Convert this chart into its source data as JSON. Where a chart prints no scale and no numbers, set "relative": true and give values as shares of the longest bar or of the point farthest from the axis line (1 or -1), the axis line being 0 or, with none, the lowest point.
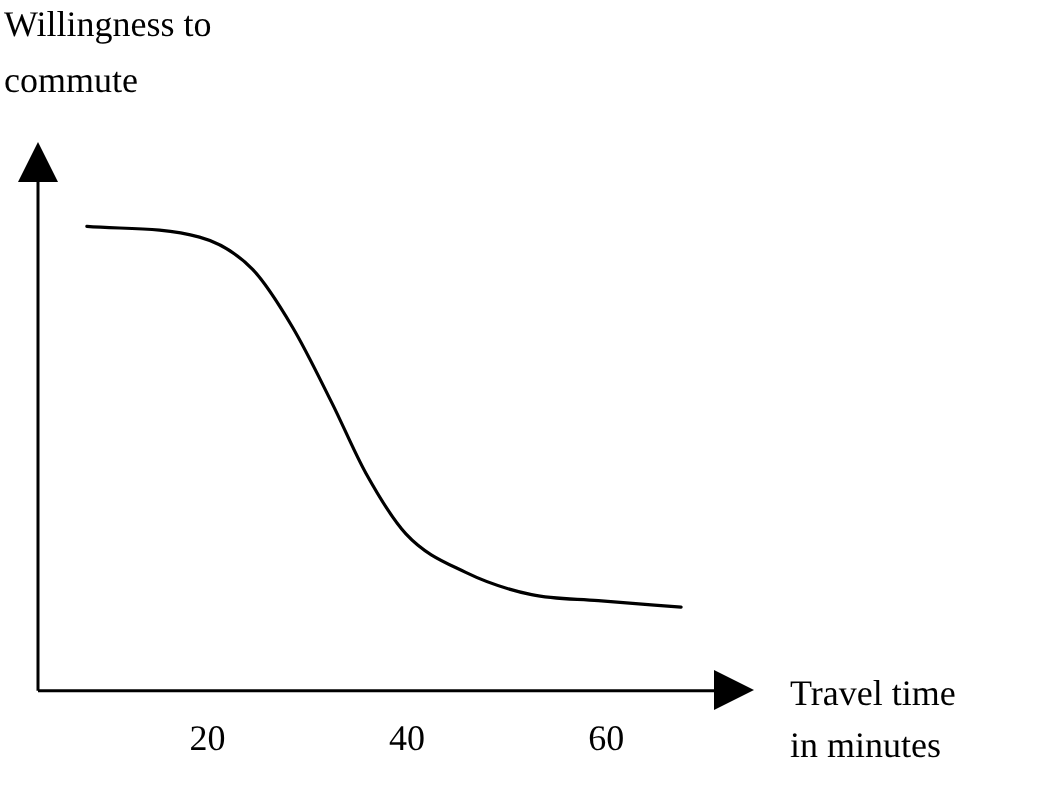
{
  "chart_data": {
    "type": "line",
    "xlabel": "Travel time in minutes",
    "ylabel": "Willingness to commute",
    "relative": true,
    "xlim": [
      3,
      71
    ],
    "xticks": [
      20,
      40,
      60
    ],
    "marker": "none",
    "line_style": "solid",
    "series": [
      {
        "color": "#000000",
        "x": [
          7.9,
          19.2,
          24.5,
          28.5,
          32.5,
          35.9,
          39.9,
          45.9,
          52.5,
          59.2,
          67.5
        ],
        "values": [
          1,
          0.977,
          0.908,
          0.784,
          0.619,
          0.468,
          0.338,
          0.255,
          0.207,
          0.194,
          0.18
        ]
      }
    ]
  }
}
